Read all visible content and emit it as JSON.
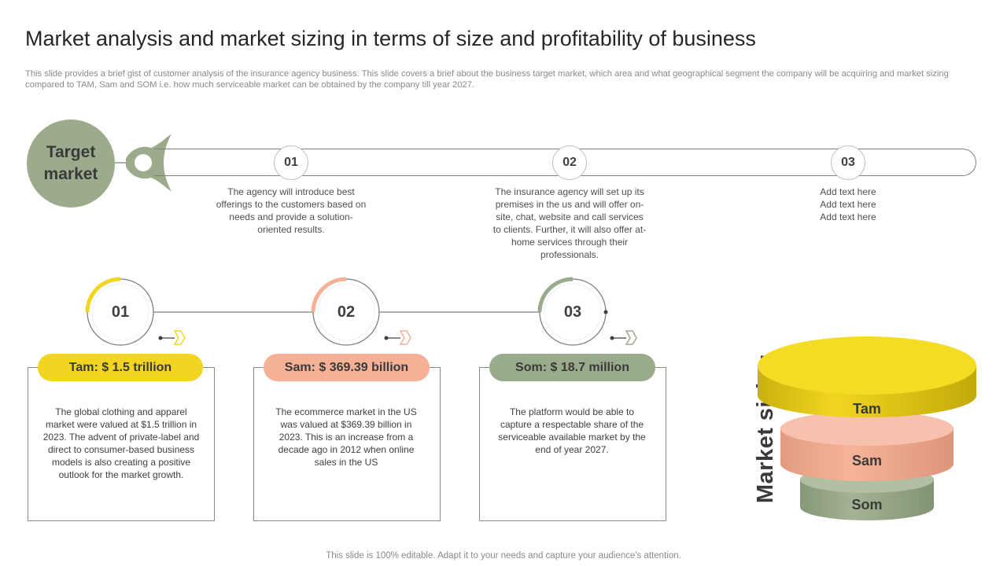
{
  "title": "Market analysis and market sizing in terms of size and profitability of business",
  "subtitle": "This slide provides a brief gist of customer analysis of the insurance agency business. This slide covers a brief about the business target market, which area and what geographical segment the company will be acquiring and market sizing compared to TAM,  Sam and SOM  i.e. how much serviceable market can be obtained by the company till year 2027.",
  "target_market": {
    "label": "Target market",
    "steps": [
      {
        "num": "01",
        "text": "The agency will introduce best offerings to the customers based on needs and provide  a solution-oriented results."
      },
      {
        "num": "02",
        "text": "The insurance agency will set up its premises in the us and will offer on-site, chat, website and call services to clients. Further, it will also offer at-home services through their professionals."
      },
      {
        "num": "03",
        "text": "Add text here\nAdd text here\nAdd text here"
      }
    ]
  },
  "markets": [
    {
      "num": "01",
      "pill": "Tam: $ 1.5 trillion",
      "color": "#f2d520",
      "text": "The global clothing and apparel market were valued at $1.5 trillion in 2023. The advent of private-label and direct to consumer-based business models is also creating a positive outlook for the market growth."
    },
    {
      "num": "02",
      "pill": "Sam: $ 369.39 billion",
      "color": "#f5b096",
      "text": "The ecommerce market in the US was valued  at $369.39 billion in 2023. This is an increase from a decade ago in 2012 when online sales in the US"
    },
    {
      "num": "03",
      "pill": "Som: $ 18.7 million",
      "color": "#9aab8b",
      "text": "The platform would be able to capture a respectable share of the serviceable available market by the end of year 2027."
    }
  ],
  "market_sizing": {
    "title": "Market sizing",
    "layers": [
      "Tam",
      "Sam",
      "Som"
    ]
  },
  "footer": "This slide is 100% editable. Adapt it to your needs and capture your audience's attention.",
  "colors": {
    "accent_green": "#9bab8c",
    "accent_yellow": "#f2d520",
    "accent_peach": "#f5b096"
  }
}
